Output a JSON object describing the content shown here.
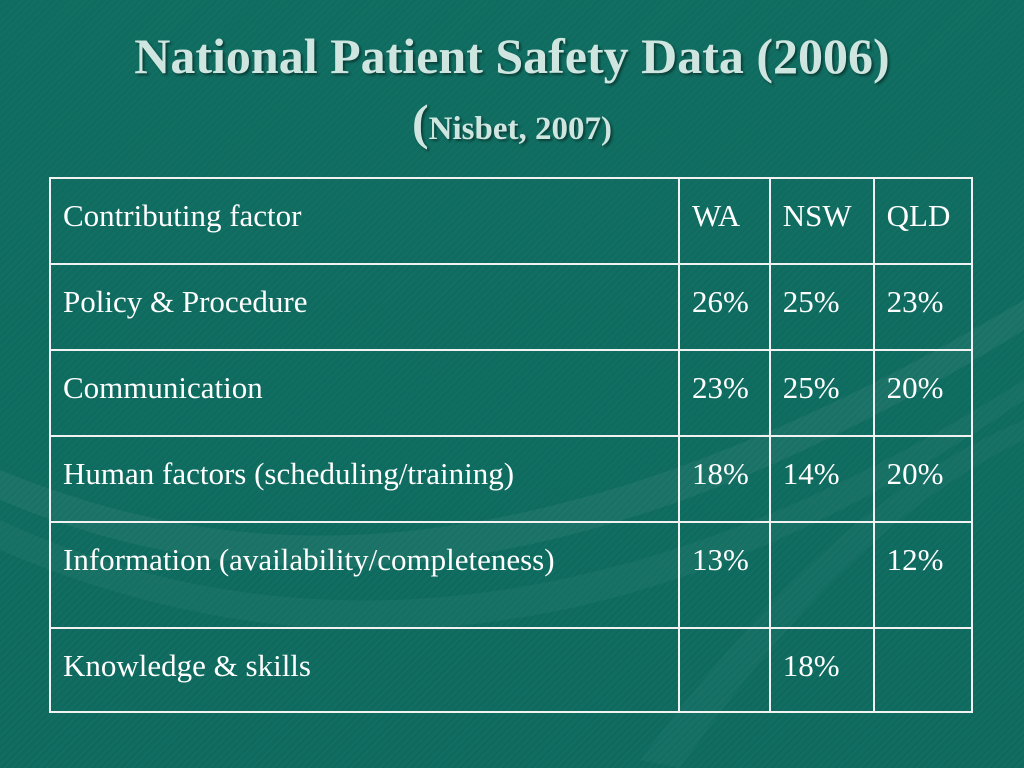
{
  "slide": {
    "title_line1": "National Patient Safety Data (2006)",
    "title_paren_open": "(",
    "title_citation": "Nisbet, 2007)"
  },
  "table": {
    "header": {
      "factor": "Contributing factor",
      "wa": "WA",
      "nsw": "NSW",
      "qld": "QLD"
    },
    "rows": [
      {
        "factor": "Policy & Procedure",
        "wa": "26%",
        "nsw": "25%",
        "qld": "23%"
      },
      {
        "factor": "Communication",
        "wa": "23%",
        "nsw": "25%",
        "qld": "20%"
      },
      {
        "factor": "Human factors (scheduling/training)",
        "wa": "18%",
        "nsw": "14%",
        "qld": "20%"
      },
      {
        "factor": "Information (availability/completeness)",
        "wa": "13%",
        "nsw": "",
        "qld": "12%"
      },
      {
        "factor": "Knowledge & skills",
        "wa": "",
        "nsw": "18%",
        "qld": ""
      }
    ]
  },
  "colors": {
    "background": "#0f6b5f",
    "title_text": "#cfe6e0",
    "table_text": "#ffffff",
    "table_border": "#f2f2f2"
  }
}
